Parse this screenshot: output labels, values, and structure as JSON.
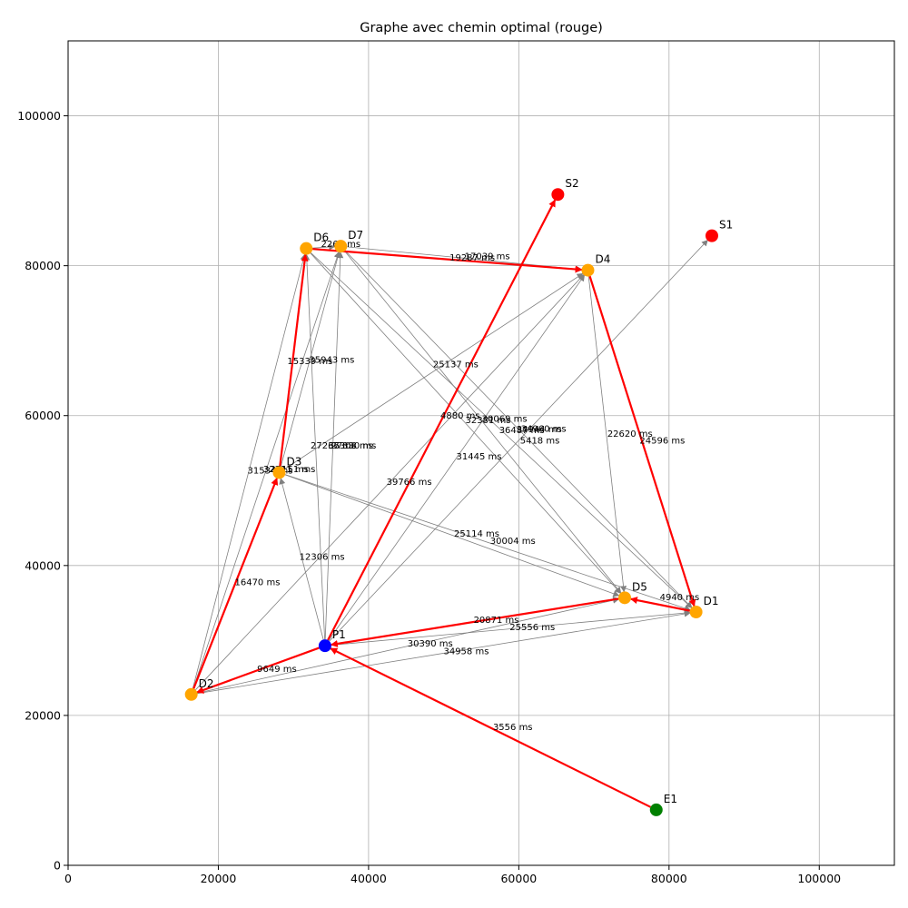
{
  "chart_data": {
    "type": "scatter",
    "title": "Graphe avec chemin optimal (rouge)",
    "xlabel": "",
    "ylabel": "",
    "xlim": [
      0,
      110000
    ],
    "ylim": [
      0,
      110000
    ],
    "xticks": [
      0,
      20000,
      40000,
      60000,
      80000,
      100000
    ],
    "yticks": [
      0,
      20000,
      40000,
      60000,
      80000,
      100000
    ],
    "xtick_labels": [
      "0",
      "20000",
      "40000",
      "60000",
      "80000",
      "100000"
    ],
    "ytick_labels": [
      "0",
      "20000",
      "40000",
      "60000",
      "80000",
      "100000"
    ],
    "grid": true,
    "colors": {
      "delivery": "#ffa500",
      "source": "#ff0000",
      "entry": "#008000",
      "start": "#0000ff",
      "edge": "#808080",
      "optimal_path": "#ff0000"
    },
    "nodes": [
      {
        "id": "E1",
        "label": "E1",
        "x": 78300,
        "y": 7400,
        "kind": "entry"
      },
      {
        "id": "P1",
        "label": "P1",
        "x": 34200,
        "y": 29300,
        "kind": "start"
      },
      {
        "id": "S1",
        "label": "S1",
        "x": 85700,
        "y": 84000,
        "kind": "source"
      },
      {
        "id": "S2",
        "label": "S2",
        "x": 65200,
        "y": 89500,
        "kind": "source"
      },
      {
        "id": "D1",
        "label": "D1",
        "x": 83600,
        "y": 33800,
        "kind": "delivery"
      },
      {
        "id": "D2",
        "label": "D2",
        "x": 16400,
        "y": 22800,
        "kind": "delivery"
      },
      {
        "id": "D3",
        "label": "D3",
        "x": 28100,
        "y": 52400,
        "kind": "delivery"
      },
      {
        "id": "D4",
        "label": "D4",
        "x": 69200,
        "y": 79400,
        "kind": "delivery"
      },
      {
        "id": "D5",
        "label": "D5",
        "x": 74100,
        "y": 35700,
        "kind": "delivery"
      },
      {
        "id": "D6",
        "label": "D6",
        "x": 31700,
        "y": 82300,
        "kind": "delivery"
      },
      {
        "id": "D7",
        "label": "D7",
        "x": 36300,
        "y": 82600,
        "kind": "delivery"
      }
    ],
    "edges": [
      {
        "from": "P1",
        "to": "D2"
      },
      {
        "from": "P1",
        "to": "D3"
      },
      {
        "from": "P1",
        "to": "D4"
      },
      {
        "from": "P1",
        "to": "D5"
      },
      {
        "from": "P1",
        "to": "D1"
      },
      {
        "from": "P1",
        "to": "D6"
      },
      {
        "from": "P1",
        "to": "D7"
      },
      {
        "from": "P1",
        "to": "S1"
      },
      {
        "from": "D2",
        "to": "D3"
      },
      {
        "from": "D2",
        "to": "D6"
      },
      {
        "from": "D2",
        "to": "D7"
      },
      {
        "from": "D2",
        "to": "D4"
      },
      {
        "from": "D2",
        "to": "D5"
      },
      {
        "from": "D2",
        "to": "D1"
      },
      {
        "from": "D3",
        "to": "D6"
      },
      {
        "from": "D3",
        "to": "D7"
      },
      {
        "from": "D3",
        "to": "D4"
      },
      {
        "from": "D3",
        "to": "D5"
      },
      {
        "from": "D3",
        "to": "D1"
      },
      {
        "from": "D6",
        "to": "D7"
      },
      {
        "from": "D6",
        "to": "D4"
      },
      {
        "from": "D6",
        "to": "D5"
      },
      {
        "from": "D6",
        "to": "D1"
      },
      {
        "from": "D7",
        "to": "D4"
      },
      {
        "from": "D7",
        "to": "D5"
      },
      {
        "from": "D7",
        "to": "D1"
      },
      {
        "from": "D4",
        "to": "D5"
      },
      {
        "from": "D4",
        "to": "D1"
      },
      {
        "from": "D5",
        "to": "D1"
      }
    ],
    "optimal_path": [
      {
        "from": "E1",
        "to": "P1"
      },
      {
        "from": "P1",
        "to": "D2"
      },
      {
        "from": "D2",
        "to": "D3"
      },
      {
        "from": "D3",
        "to": "D6"
      },
      {
        "from": "D6",
        "to": "D4"
      },
      {
        "from": "D4",
        "to": "D1"
      },
      {
        "from": "D1",
        "to": "D5"
      },
      {
        "from": "D5",
        "to": "P1"
      },
      {
        "from": "P1",
        "to": "S2"
      }
    ],
    "edge_labels": [
      {
        "text": "3556 ms",
        "x": 59200,
        "y": 18500
      },
      {
        "text": "9649 ms",
        "x": 27800,
        "y": 26200
      },
      {
        "text": "30390 ms",
        "x": 48200,
        "y": 29600
      },
      {
        "text": "34958 ms",
        "x": 53000,
        "y": 28600
      },
      {
        "text": "20871 ms",
        "x": 57000,
        "y": 32800
      },
      {
        "text": "25556 ms",
        "x": 61800,
        "y": 31800
      },
      {
        "text": "4940 ms",
        "x": 81400,
        "y": 35800
      },
      {
        "text": "16470 ms",
        "x": 25200,
        "y": 37800
      },
      {
        "text": "12306 ms",
        "x": 33800,
        "y": 41200
      },
      {
        "text": "25114 ms",
        "x": 54400,
        "y": 44300
      },
      {
        "text": "30004 ms",
        "x": 59200,
        "y": 43300
      },
      {
        "text": "39766 ms",
        "x": 45400,
        "y": 51200
      },
      {
        "text": "31534 ms",
        "x": 26900,
        "y": 52700
      },
      {
        "text": "32311 ms",
        "x": 29000,
        "y": 52900
      },
      {
        "text": "26151 ms",
        "x": 29900,
        "y": 52900
      },
      {
        "text": "31445 ms",
        "x": 54700,
        "y": 54600
      },
      {
        "text": "27266 ms",
        "x": 35300,
        "y": 56000
      },
      {
        "text": "37308 ms",
        "x": 37600,
        "y": 56000
      },
      {
        "text": "27330 ms",
        "x": 38000,
        "y": 56000
      },
      {
        "text": "5418 ms",
        "x": 62800,
        "y": 56700
      },
      {
        "text": "22620 ms",
        "x": 74800,
        "y": 57600
      },
      {
        "text": "24596 ms",
        "x": 79100,
        "y": 56700
      },
      {
        "text": "4880 ms",
        "x": 52200,
        "y": 60000
      },
      {
        "text": "32381 ms",
        "x": 55900,
        "y": 59400
      },
      {
        "text": "30069 ms",
        "x": 58100,
        "y": 59600
      },
      {
        "text": "36487 ms",
        "x": 60400,
        "y": 58100
      },
      {
        "text": "34960 ms",
        "x": 63300,
        "y": 58300
      },
      {
        "text": "34944 ms",
        "x": 62700,
        "y": 58200
      },
      {
        "text": "25137 ms",
        "x": 51600,
        "y": 66900
      },
      {
        "text": "15339 ms",
        "x": 32200,
        "y": 67300
      },
      {
        "text": "35943 ms",
        "x": 35100,
        "y": 67500
      },
      {
        "text": "19287 ms",
        "x": 53800,
        "y": 81100
      },
      {
        "text": "17039 ms",
        "x": 55800,
        "y": 81300
      },
      {
        "text": "2267 ms",
        "x": 36300,
        "y": 82900
      }
    ]
  }
}
